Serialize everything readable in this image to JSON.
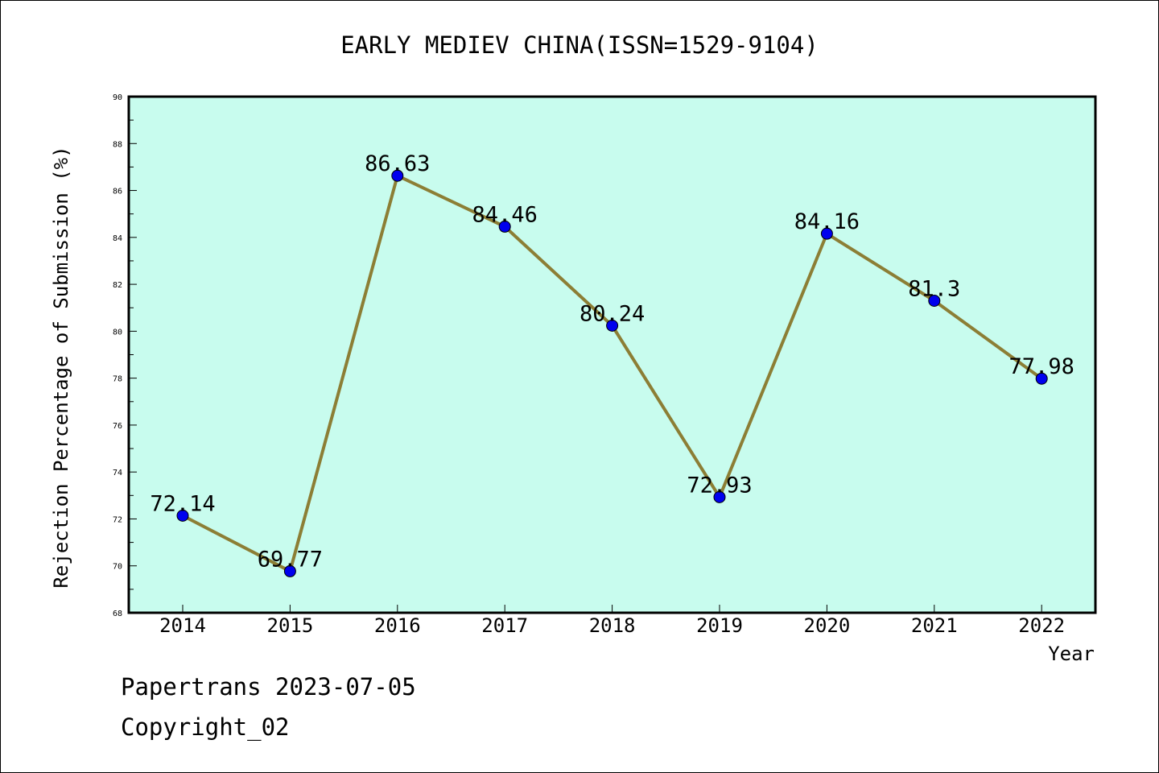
{
  "chart_data": {
    "type": "line",
    "title": "EARLY MEDIEV CHINA(ISSN=1529-9104)",
    "xlabel": "Year",
    "ylabel": "Rejection Percentage of Submission (%)",
    "categories": [
      "2014",
      "2015",
      "2016",
      "2017",
      "2018",
      "2019",
      "2020",
      "2021",
      "2022"
    ],
    "values": [
      72.14,
      69.77,
      86.63,
      84.46,
      80.24,
      72.93,
      84.16,
      81.3,
      77.98
    ],
    "data_labels": [
      "72.14",
      "69.77",
      "86.63",
      "84.46",
      "80.24",
      "72.93",
      "84.16",
      "81.3",
      "77.98"
    ],
    "ylim": [
      68,
      90
    ],
    "yticks": [
      "68",
      "70",
      "72",
      "74",
      "76",
      "78",
      "80",
      "82",
      "84",
      "86",
      "88",
      "90"
    ],
    "grid": false,
    "colors": {
      "plot_background": "#c8fcee",
      "line": "#8c7e35",
      "marker": "#0000ee"
    }
  },
  "footer": {
    "source": "Papertrans 2023-07-05",
    "copyright": "Copyright_02"
  }
}
